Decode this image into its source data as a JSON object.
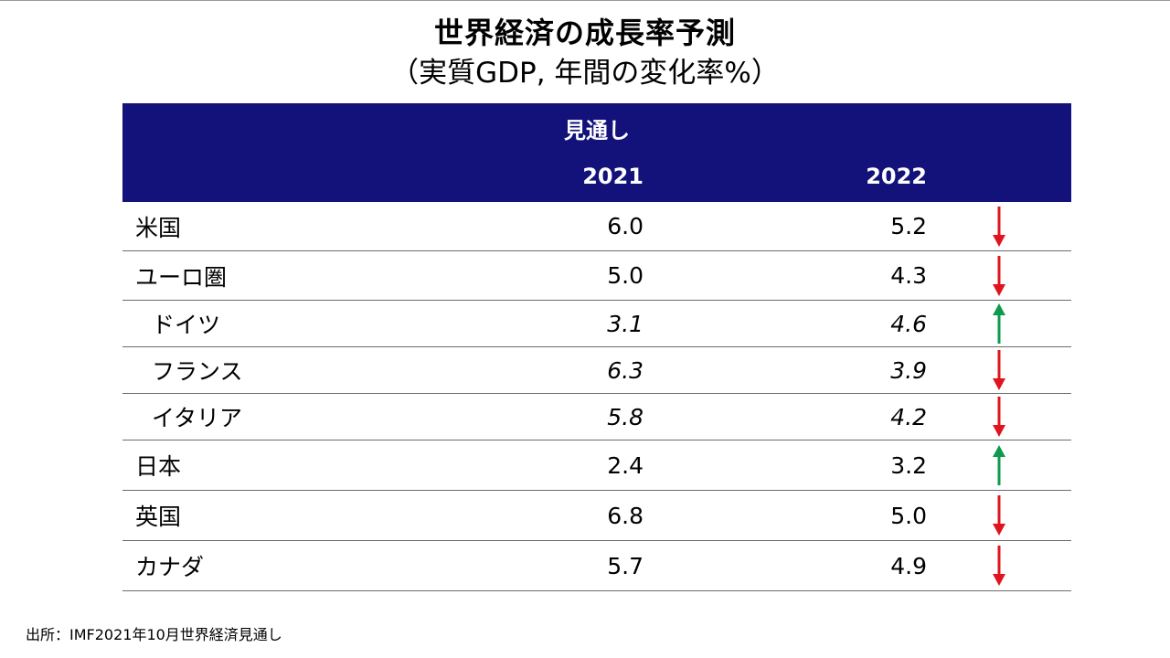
{
  "title": "世界経済の成長率予測",
  "subtitle": "（実質GDP, 年間の変化率%）",
  "table": {
    "group_header": "見通し",
    "years": [
      "2021",
      "2022"
    ],
    "rows": [
      {
        "name": "米国",
        "v2021": "6.0",
        "v2022": "5.2",
        "trend": "down",
        "indent": false
      },
      {
        "name": "ユーロ圏",
        "v2021": "5.0",
        "v2022": "4.3",
        "trend": "down",
        "indent": false
      },
      {
        "name": "ドイツ",
        "v2021": "3.1",
        "v2022": "4.6",
        "trend": "up",
        "indent": true
      },
      {
        "name": "フランス",
        "v2021": "6.3",
        "v2022": "3.9",
        "trend": "down",
        "indent": true
      },
      {
        "name": "イタリア",
        "v2021": "5.8",
        "v2022": "4.2",
        "trend": "down",
        "indent": true
      },
      {
        "name": "日本",
        "v2021": "2.4",
        "v2022": "3.2",
        "trend": "up",
        "indent": false
      },
      {
        "name": "英国",
        "v2021": "6.8",
        "v2022": "5.0",
        "trend": "down",
        "indent": false
      },
      {
        "name": "カナダ",
        "v2021": "5.7",
        "v2022": "4.9",
        "trend": "down",
        "indent": false
      }
    ]
  },
  "source": "出所：IMF2021年10月世界経済見通し",
  "colors": {
    "header_bg": "#13127a",
    "arrow_down": "#e0141e",
    "arrow_up": "#0e9a4e"
  },
  "icons": {
    "down": "arrow-down-icon",
    "up": "arrow-up-icon"
  }
}
